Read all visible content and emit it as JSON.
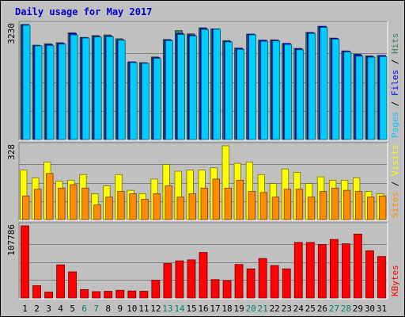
{
  "chart_data": {
    "type": "bar",
    "title": "Daily usage for May 2017",
    "days": [
      "1",
      "2",
      "3",
      "4",
      "5",
      "6",
      "7",
      "8",
      "9",
      "10",
      "11",
      "12",
      "13",
      "14",
      "15",
      "16",
      "17",
      "18",
      "19",
      "20",
      "21",
      "22",
      "23",
      "24",
      "25",
      "26",
      "27",
      "28",
      "29",
      "30",
      "31"
    ],
    "weekend_days": [
      "6",
      "7",
      "13",
      "14",
      "20",
      "21",
      "27",
      "28"
    ],
    "colors": {
      "background": "#c0c0c0",
      "title": "#0000cc",
      "hits": "#2e8b57",
      "files": "#0000ff",
      "pages": "#00ccff",
      "visits": "#ffff00",
      "sites": "#ff8c00",
      "kbytes": "#ff0000",
      "weekday_label": "#000000",
      "weekend_label": "#00806e"
    },
    "panels": [
      {
        "id": "hits",
        "ymax_label": "3230",
        "ymax": 3230,
        "legend": [
          {
            "text": "Pages",
            "color": "#00ccff"
          },
          {
            "text": "Files",
            "color": "#0000ff"
          },
          {
            "text": "Hits",
            "color": "#2e8b57"
          }
        ],
        "series": [
          {
            "name": "Hits",
            "color": "#2e8b57",
            "values": [
              3230,
              2650,
              2690,
              2720,
              3000,
              2870,
              2920,
              2940,
              2830,
              2180,
              2160,
              2320,
              2810,
              3060,
              2970,
              3140,
              3110,
              2780,
              2570,
              2960,
              2790,
              2800,
              2700,
              2560,
              3010,
              3180,
              2850,
              2490,
              2400,
              2350,
              2360
            ]
          },
          {
            "name": "Files",
            "color": "#0000ff",
            "values": [
              3230,
              2640,
              2670,
              2700,
              2980,
              2860,
              2900,
              2910,
              2800,
              2180,
              2150,
              2300,
              2800,
              2980,
              2940,
              3120,
              3110,
              2760,
              2560,
              2960,
              2790,
              2790,
              2700,
              2550,
              3000,
              3180,
              2840,
              2480,
              2380,
              2330,
              2360
            ]
          },
          {
            "name": "Pages",
            "color": "#00ccff",
            "values": [
              3210,
              2630,
              2640,
              2680,
              2940,
              2850,
              2880,
              2890,
              2790,
              2160,
              2140,
              2280,
              2780,
              2950,
              2910,
              3090,
              3100,
              2740,
              2530,
              2940,
              2760,
              2770,
              2670,
              2520,
              2980,
              3150,
              2820,
              2460,
              2340,
              2310,
              2330
            ]
          }
        ]
      },
      {
        "id": "visits",
        "ymax_label": "328",
        "ymax": 328,
        "legend": [
          {
            "text": "Sites",
            "color": "#ff8c00"
          },
          {
            "text": "Visits",
            "color": "#ffff00"
          }
        ],
        "series": [
          {
            "name": "Visits",
            "color": "#ffff00",
            "values": [
              220,
              185,
              255,
              170,
              175,
              200,
              115,
              150,
              200,
              130,
              115,
              180,
              245,
              215,
              220,
              220,
              230,
              328,
              250,
              255,
              200,
              160,
              225,
              210,
              160,
              190,
              175,
              175,
              185,
              125,
              115
            ]
          },
          {
            "name": "Sites",
            "color": "#ff8c00",
            "values": [
              105,
              135,
              205,
              140,
              155,
              140,
              65,
              100,
              125,
              115,
              90,
              115,
              150,
              100,
              115,
              140,
              180,
              140,
              175,
              125,
              120,
              100,
              135,
              135,
              100,
              125,
              140,
              130,
              125,
              100,
              105
            ]
          }
        ]
      },
      {
        "id": "kbytes",
        "ymax_label": "107786",
        "ymax": 107786,
        "legend": [
          {
            "text": "KBytes",
            "color": "#ff0000"
          }
        ],
        "series": [
          {
            "name": "KBytes",
            "color": "#ff0000",
            "values": [
              107786,
              18500,
              8800,
              49500,
              39000,
              12500,
              9500,
              10000,
              11500,
              10500,
              10000,
              26500,
              51500,
              55500,
              57000,
              68000,
              27500,
              26000,
              50000,
              43500,
              59000,
              48500,
              43500,
              83000,
              83000,
              80000,
              87500,
              81000,
              95500,
              70500,
              62000
            ]
          }
        ]
      }
    ]
  }
}
